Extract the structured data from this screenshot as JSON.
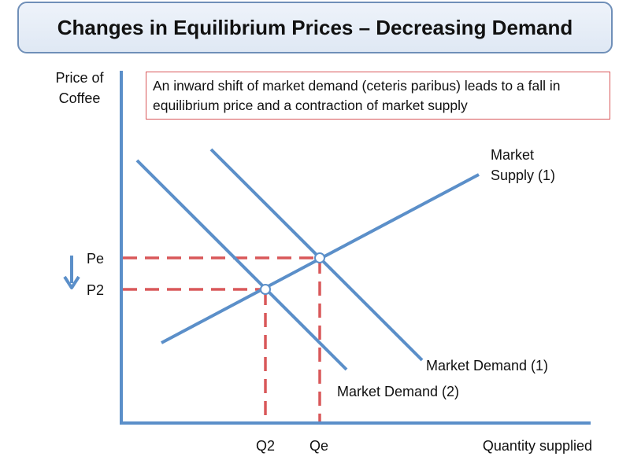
{
  "title": "Changes in Equilibrium Prices – Decreasing Demand",
  "note": "An inward shift of market demand (ceteris paribus) leads to a fall in equilibrium price and a contraction of market supply",
  "axes": {
    "y_label": "Price of Coffee",
    "x_label": "Quantity supplied"
  },
  "price_labels": {
    "pe": "Pe",
    "p2": "P2"
  },
  "quantity_labels": {
    "q2": "Q2",
    "qe": "Qe"
  },
  "curves": {
    "supply": "Market Supply (1)",
    "demand1": "Market Demand (1)",
    "demand2": "Market Demand (2)"
  },
  "colors": {
    "curve": "#5b8fc9",
    "dashed": "#d9585a",
    "axis": "#5b8fc9",
    "arrow": "#5b8fc9"
  },
  "icons": {
    "price_arrow": "down-arrow-icon"
  }
}
